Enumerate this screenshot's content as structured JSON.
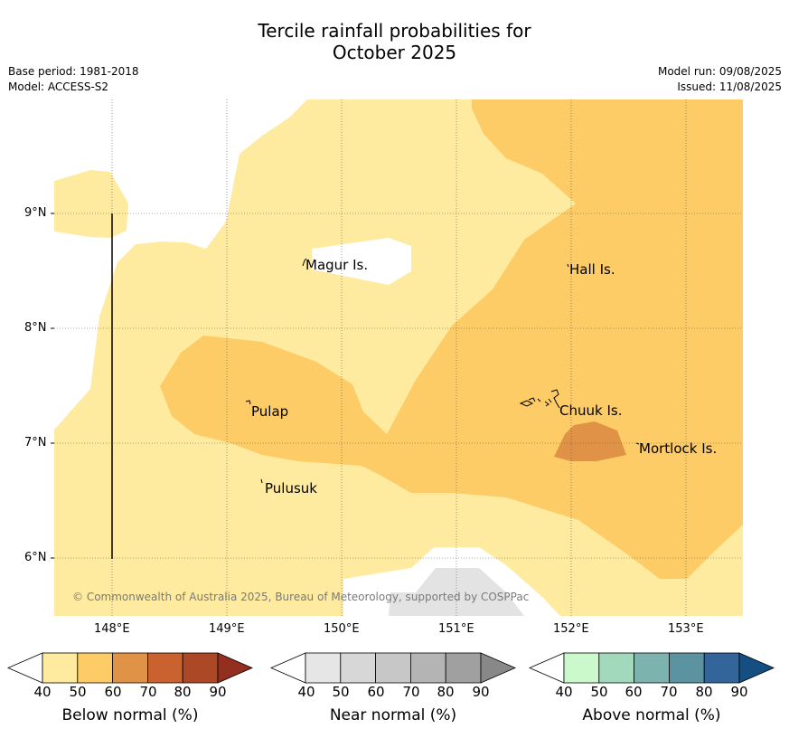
{
  "header": {
    "title_line1": "Tercile rainfall probabilities for",
    "title_line2": "October 2025",
    "base_period": "Base period: 1981-2018",
    "model": "Model: ACCESS-S2",
    "model_run": "Model run: 09/08/2025",
    "issued": "Issued: 11/08/2025"
  },
  "map": {
    "lat_labels": [
      "9°N",
      "8°N",
      "7°N",
      "6°N"
    ],
    "lon_labels": [
      "148°E",
      "149°E",
      "150°E",
      "151°E",
      "152°E",
      "153°E"
    ],
    "places": {
      "magur": "Magur Is.",
      "hall": "Hall Is.",
      "pulap": "Pulap",
      "chuuk": "Chuuk Is.",
      "mortlock": "Mortlock Is.",
      "pulusuk": "Pulusuk"
    },
    "credit": "© Commonwealth of Australia 2025, Bureau of Meteorology, supported by COSPPac",
    "colors": {
      "below_40_50": "#feeb9f",
      "below_50_60": "#fdcc67",
      "below_60_70": "#e09346",
      "near_40_50": "#e3e3e3"
    }
  },
  "legend": {
    "ticks": [
      "40",
      "50",
      "60",
      "70",
      "80",
      "90"
    ],
    "below": {
      "title": "Below normal (%)",
      "colors": [
        "#ffffff",
        "#feeb9f",
        "#fdcc67",
        "#e09346",
        "#c9622f",
        "#ad4826",
        "#922f1e"
      ]
    },
    "near": {
      "title": "Near normal (%)",
      "colors": [
        "#ffffff",
        "#e6e6e6",
        "#d7d7d7",
        "#c7c7c7",
        "#b4b4b4",
        "#a0a0a0",
        "#888888"
      ]
    },
    "above": {
      "title": "Above normal (%)",
      "colors": [
        "#ffffff",
        "#ccf9cc",
        "#a2d8bc",
        "#7db3ae",
        "#5b93a1",
        "#34659a",
        "#154f82"
      ]
    }
  }
}
